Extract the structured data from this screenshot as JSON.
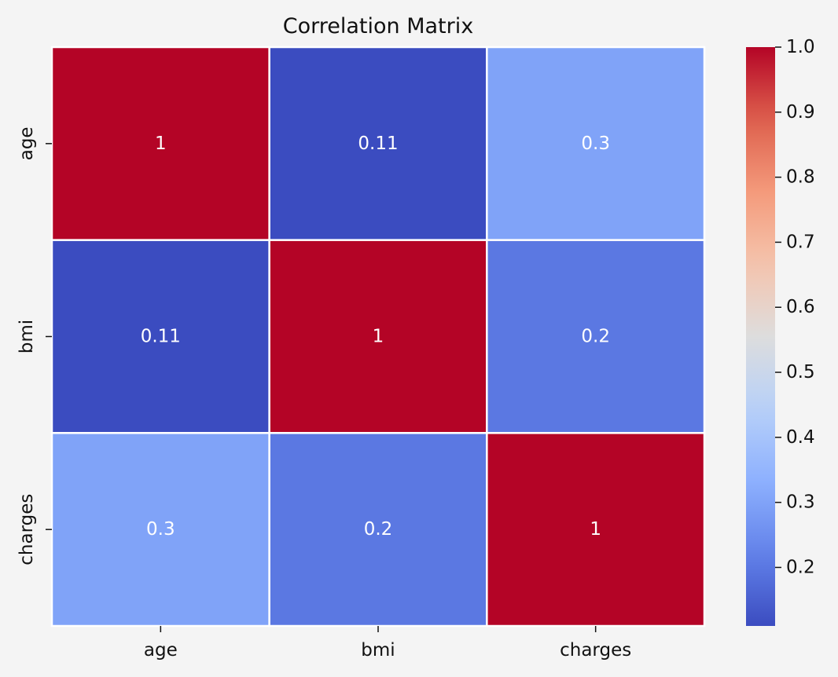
{
  "chart_data": {
    "type": "heatmap",
    "title": "Correlation Matrix",
    "x_labels": [
      "age",
      "bmi",
      "charges"
    ],
    "y_labels": [
      "age",
      "bmi",
      "charges"
    ],
    "values": [
      [
        1.0,
        0.11,
        0.3
      ],
      [
        0.11,
        1.0,
        0.2
      ],
      [
        0.3,
        0.2,
        1.0
      ]
    ],
    "annotations": [
      [
        "1",
        "0.11",
        "0.3"
      ],
      [
        "0.11",
        "1",
        "0.2"
      ],
      [
        "0.3",
        "0.2",
        "1"
      ]
    ],
    "colormap": "coolwarm",
    "colorbar": {
      "range": [
        0.11,
        1.0
      ],
      "ticks": [
        0.2,
        0.3,
        0.4,
        0.5,
        0.6,
        0.7,
        0.8,
        0.9,
        1.0
      ],
      "tick_labels": [
        "0.2",
        "0.3",
        "0.4",
        "0.5",
        "0.6",
        "0.7",
        "0.8",
        "0.9",
        "1.0"
      ]
    },
    "cell_border_color": "#ffffff",
    "annotation_color": "#ffffff"
  }
}
